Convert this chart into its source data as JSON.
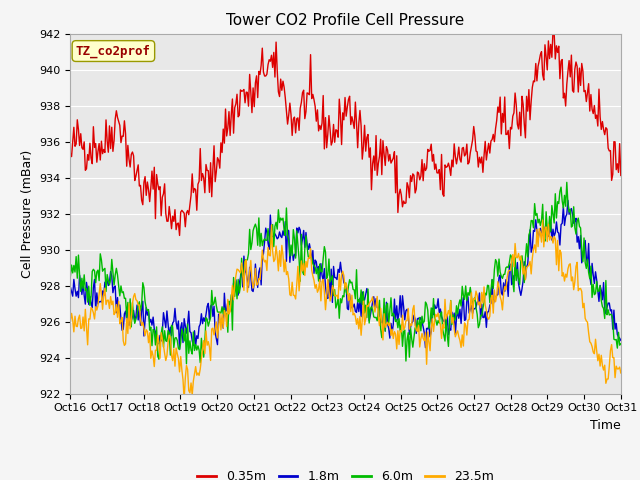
{
  "title": "Tower CO2 Profile Cell Pressure",
  "ylabel": "Cell Pressure (mBar)",
  "xlabel": "Time",
  "ylim": [
    922,
    942
  ],
  "yticks": [
    922,
    924,
    926,
    928,
    930,
    932,
    934,
    936,
    938,
    940,
    942
  ],
  "xtick_labels": [
    "Oct 16",
    "Oct 17",
    "Oct 18",
    "Oct 19",
    "Oct 20",
    "Oct 21",
    "Oct 22",
    "Oct 23",
    "Oct 24",
    "Oct 25",
    "Oct 26",
    "Oct 27",
    "Oct 28",
    "Oct 29",
    "Oct 30",
    "Oct 31"
  ],
  "series_colors": [
    "#dd0000",
    "#0000cc",
    "#00bb00",
    "#ffaa00"
  ],
  "series_labels": [
    "0.35m",
    "1.8m",
    "6.0m",
    "23.5m"
  ],
  "legend_label": "TZ_co2prof",
  "legend_label_color": "#990000",
  "legend_box_color": "#ffffcc",
  "fig_bg_color": "#f5f5f5",
  "plot_bg_color": "#e8e8e8",
  "grid_color": "#ffffff",
  "linewidth": 1.0,
  "title_fontsize": 11,
  "axis_fontsize": 9,
  "tick_fontsize": 8,
  "legend_fontsize": 9
}
